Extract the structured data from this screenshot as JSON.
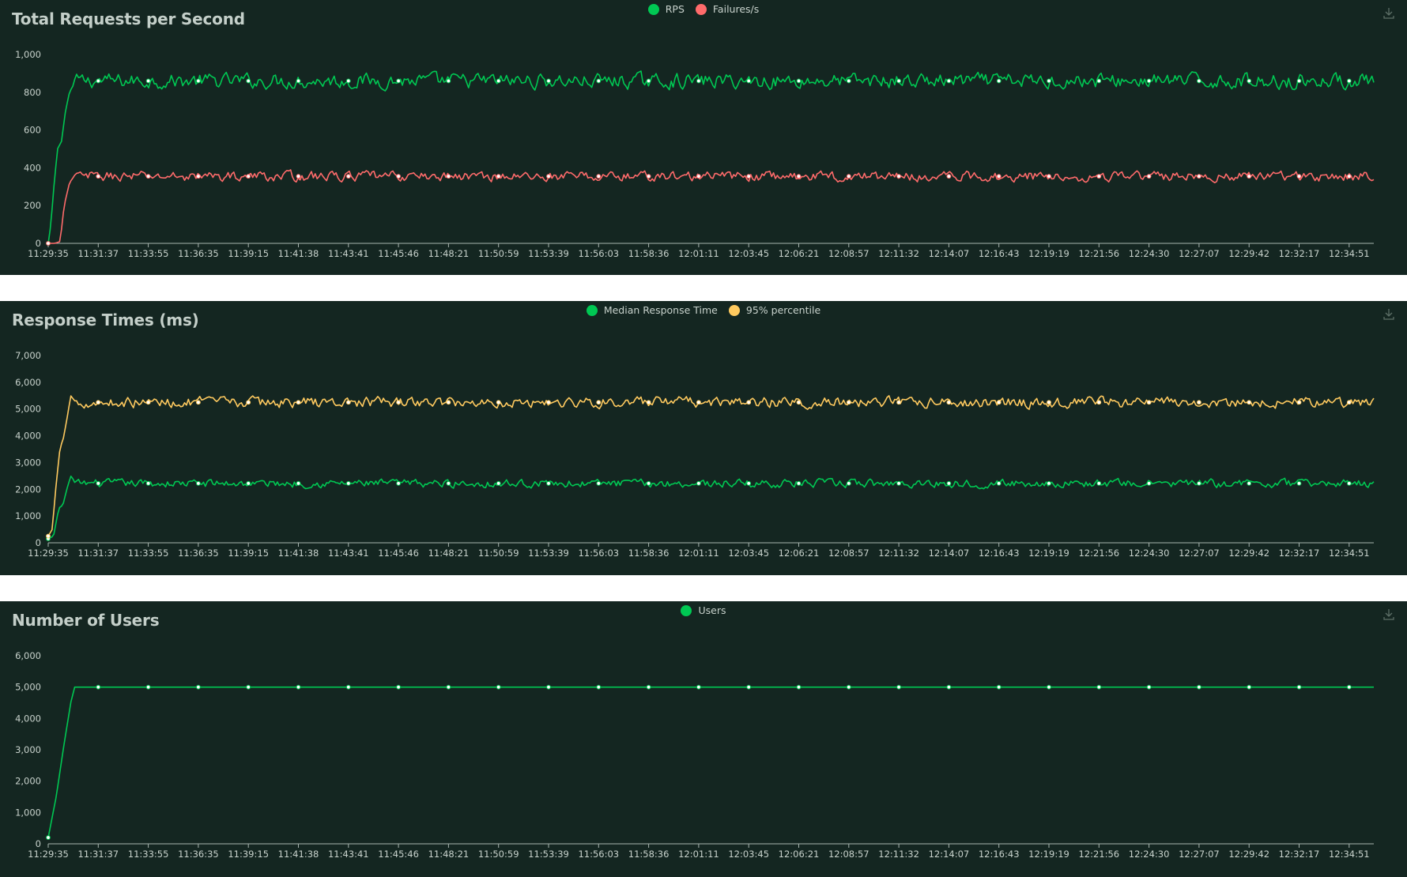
{
  "charts": [
    {
      "title": "Total Requests per Second",
      "legend": [
        {
          "label": "RPS",
          "color": "#00c853"
        },
        {
          "label": "Failures/s",
          "color": "#ff6b6b"
        }
      ],
      "download_icon": "download-icon"
    },
    {
      "title": "Response Times (ms)",
      "legend": [
        {
          "label": "Median Response Time",
          "color": "#00c853"
        },
        {
          "label": "95% percentile",
          "color": "#ffca5f"
        }
      ],
      "download_icon": "download-icon"
    },
    {
      "title": "Number of Users",
      "legend": [
        {
          "label": "Users",
          "color": "#00c853"
        }
      ],
      "download_icon": "download-icon"
    }
  ],
  "chart_data": [
    {
      "type": "line",
      "title": "Total Requests per Second",
      "xlabel": "",
      "ylabel": "",
      "x_ticks": [
        "11:29:35",
        "11:31:37",
        "11:33:55",
        "11:36:35",
        "11:39:15",
        "11:41:38",
        "11:43:41",
        "11:45:46",
        "11:48:21",
        "11:50:59",
        "11:53:39",
        "11:56:03",
        "11:58:36",
        "12:01:11",
        "12:03:45",
        "12:06:21",
        "12:08:57",
        "12:11:32",
        "12:14:07",
        "12:16:43",
        "12:19:19",
        "12:21:56",
        "12:24:30",
        "12:27:07",
        "12:29:42",
        "12:32:17",
        "12:34:51"
      ],
      "y_ticks": [
        "0",
        "200",
        "400",
        "600",
        "800",
        "1,000"
      ],
      "ylim": [
        0,
        1000
      ],
      "grid": false,
      "legend_position": "top-center",
      "series": [
        {
          "name": "RPS",
          "color": "#00c853",
          "ramp": [
            [
              0,
              0
            ],
            [
              0.1,
              100
            ],
            [
              0.2,
              280
            ],
            [
              0.35,
              500
            ],
            [
              0.5,
              540
            ],
            [
              0.65,
              700
            ],
            [
              0.8,
              800
            ],
            [
              1.0,
              850
            ]
          ],
          "mean": 860,
          "noise": 60
        },
        {
          "name": "Failures/s",
          "color": "#ff6b6b",
          "ramp": [
            [
              0,
              0
            ],
            [
              0.25,
              0
            ],
            [
              0.45,
              10
            ],
            [
              0.6,
              200
            ],
            [
              0.8,
              320
            ],
            [
              1.0,
              360
            ]
          ],
          "mean": 355,
          "noise": 40
        }
      ]
    },
    {
      "type": "line",
      "title": "Response Times (ms)",
      "xlabel": "",
      "ylabel": "",
      "x_ticks": [
        "11:29:35",
        "11:31:37",
        "11:33:55",
        "11:36:35",
        "11:39:15",
        "11:41:38",
        "11:43:41",
        "11:45:46",
        "11:48:21",
        "11:50:59",
        "11:53:39",
        "11:56:03",
        "11:58:36",
        "12:01:11",
        "12:03:45",
        "12:06:21",
        "12:08:57",
        "12:11:32",
        "12:14:07",
        "12:16:43",
        "12:19:19",
        "12:21:56",
        "12:24:30",
        "12:27:07",
        "12:29:42",
        "12:32:17",
        "12:34:51"
      ],
      "y_ticks": [
        "0",
        "1,000",
        "2,000",
        "3,000",
        "4,000",
        "5,000",
        "6,000",
        "7,000"
      ],
      "ylim": [
        0,
        7000
      ],
      "grid": false,
      "legend_position": "top-center",
      "series": [
        {
          "name": "Median Response Time",
          "color": "#00c853",
          "ramp": [
            [
              0,
              150
            ],
            [
              0.2,
              250
            ],
            [
              0.4,
              1300
            ],
            [
              0.55,
              1400
            ],
            [
              0.7,
              2000
            ],
            [
              0.85,
              2500
            ],
            [
              1.0,
              2300
            ]
          ],
          "mean": 2220,
          "noise": 230
        },
        {
          "name": "95% percentile",
          "color": "#ffca5f",
          "ramp": [
            [
              0,
              250
            ],
            [
              0.15,
              500
            ],
            [
              0.3,
              2200
            ],
            [
              0.45,
              3600
            ],
            [
              0.55,
              3800
            ],
            [
              0.7,
              4600
            ],
            [
              0.85,
              5500
            ],
            [
              1.0,
              5300
            ]
          ],
          "mean": 5250,
          "noise": 300
        }
      ]
    },
    {
      "type": "line",
      "title": "Number of Users",
      "xlabel": "",
      "ylabel": "",
      "x_ticks": [
        "11:29:35",
        "11:31:37",
        "11:33:55",
        "11:36:35",
        "11:39:15",
        "11:41:38",
        "11:43:41",
        "11:45:46",
        "11:48:21",
        "11:50:59",
        "11:53:39",
        "11:56:03",
        "11:58:36",
        "12:01:11",
        "12:03:45",
        "12:06:21",
        "12:08:57",
        "12:11:32",
        "12:14:07",
        "12:16:43",
        "12:19:19",
        "12:21:56",
        "12:24:30",
        "12:27:07",
        "12:29:42",
        "12:32:17",
        "12:34:51"
      ],
      "y_ticks": [
        "0",
        "1,000",
        "2,000",
        "3,000",
        "4,000",
        "5,000",
        "6,000"
      ],
      "ylim": [
        0,
        6000
      ],
      "grid": false,
      "legend_position": "top-center",
      "series": [
        {
          "name": "Users",
          "color": "#00c853",
          "ramp": [
            [
              0,
              200
            ],
            [
              0.3,
              1500
            ],
            [
              0.6,
              3200
            ],
            [
              0.85,
              4500
            ],
            [
              1.0,
              5000
            ]
          ],
          "mean": 5000,
          "noise": 0
        }
      ]
    }
  ]
}
